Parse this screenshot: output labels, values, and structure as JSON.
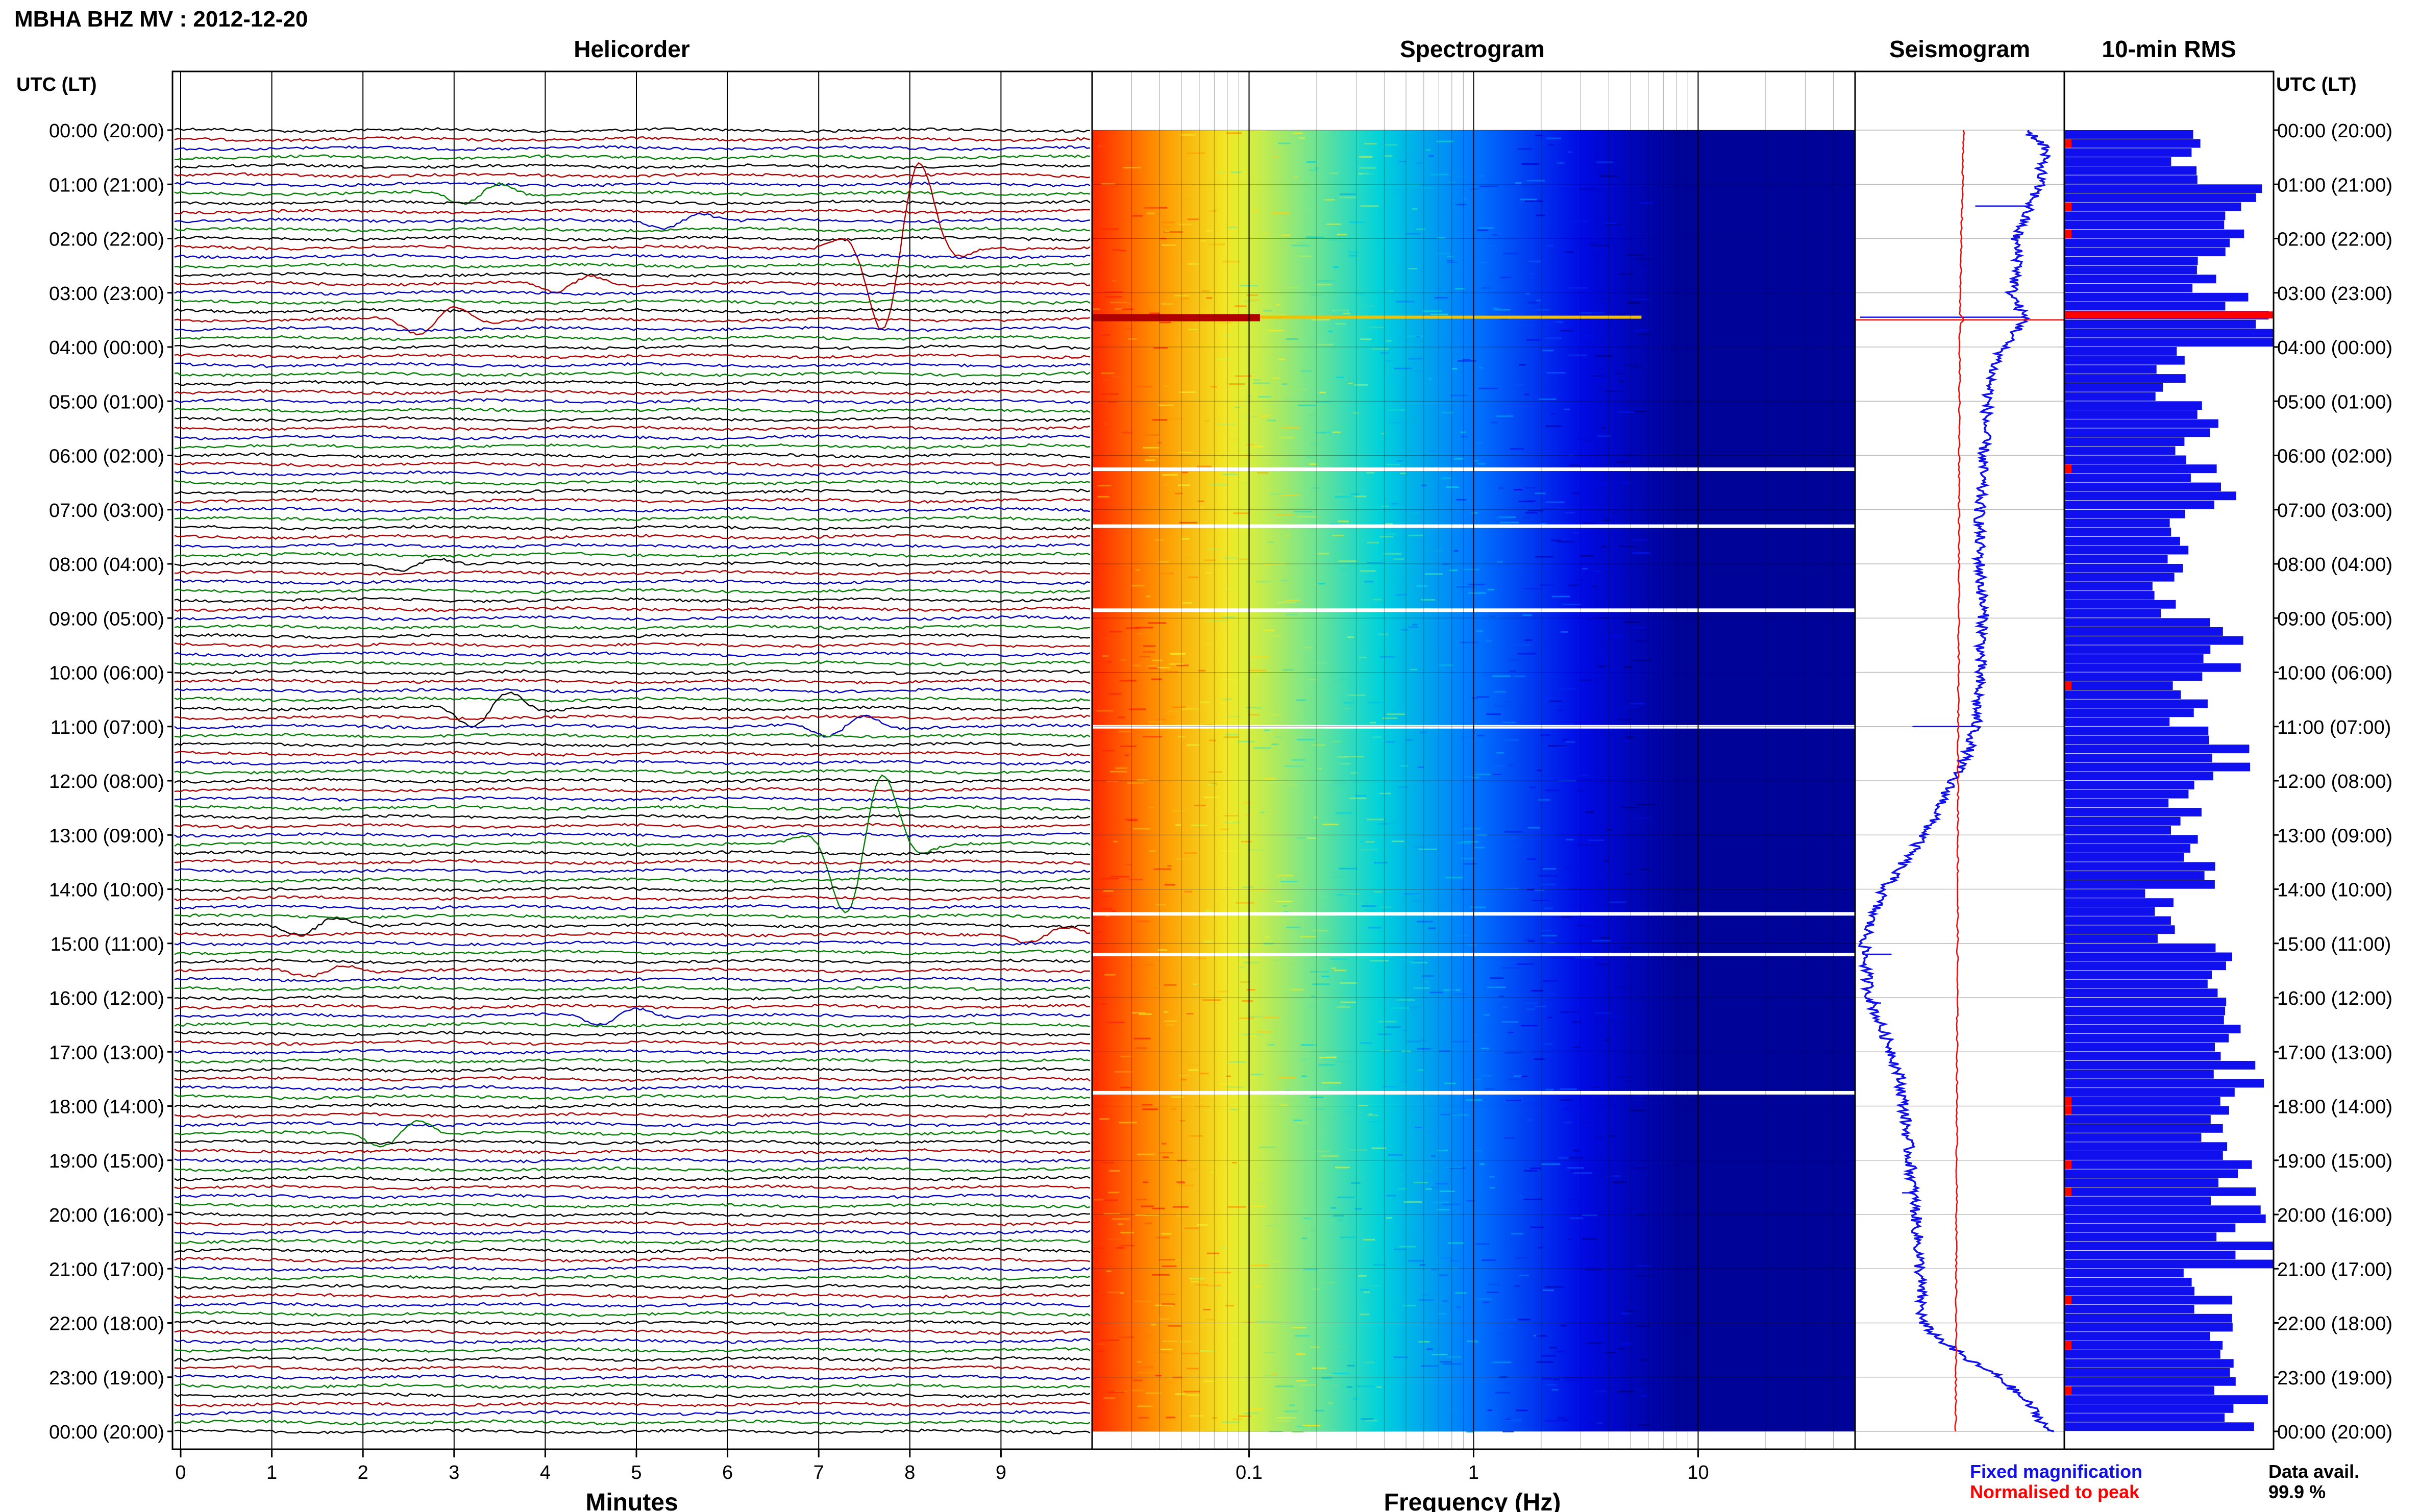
{
  "title": "MBHA BHZ MV : 2012-12-20",
  "panels": {
    "helicorder": {
      "title": "Helicorder",
      "xlabel": "Minutes"
    },
    "spectrogram": {
      "title": "Spectrogram",
      "xlabel": "Frequency (Hz)"
    },
    "seismogram": {
      "title": "Seismogram"
    },
    "rms": {
      "title": "10-min RMS"
    }
  },
  "axis_header_left": "UTC (LT)",
  "axis_header_right": "UTC (LT)",
  "time_labels": [
    "00:00 (20:00)",
    "01:00 (21:00)",
    "02:00 (22:00)",
    "03:00 (23:00)",
    "04:00 (00:00)",
    "05:00 (01:00)",
    "06:00 (02:00)",
    "07:00 (03:00)",
    "08:00 (04:00)",
    "09:00 (05:00)",
    "10:00 (06:00)",
    "11:00 (07:00)",
    "12:00 (08:00)",
    "13:00 (09:00)",
    "14:00 (10:00)",
    "15:00 (11:00)",
    "16:00 (12:00)",
    "17:00 (13:00)",
    "18:00 (14:00)",
    "19:00 (15:00)",
    "20:00 (16:00)",
    "21:00 (17:00)",
    "22:00 (18:00)",
    "23:00 (19:00)",
    "00:00 (20:00)"
  ],
  "legend": {
    "fixed": "Fixed magnification",
    "normalised": "Normalised to peak",
    "data_avail_label": "Data avail.",
    "data_avail_value": "99.9 %"
  },
  "colors": {
    "fixed": "#1010ee",
    "normalised": "#ff0000",
    "trace_cycle": [
      "#000000",
      "#b00000",
      "#0000c0",
      "#008000"
    ],
    "spectrogram_low": "#00007a",
    "spectrogram_high": "#ff3000"
  },
  "chart_data": [
    {
      "type": "line",
      "panel": "helicorder",
      "x_ticks": [
        "0",
        "1",
        "2",
        "3",
        "4",
        "5",
        "6",
        "7",
        "8",
        "9"
      ],
      "xlim": [
        0,
        10
      ],
      "rows": 144,
      "row_minutes": 10,
      "events": [
        {
          "row": 7,
          "minute": 3.3,
          "amp": 1.5
        },
        {
          "row": 10,
          "minute": 5.5,
          "amp": 1.0
        },
        {
          "row": 13,
          "minute": 7.9,
          "amp": 12.0
        },
        {
          "row": 17,
          "minute": 4.3,
          "amp": 1.2
        },
        {
          "row": 21,
          "minute": 2.8,
          "amp": 2.0
        },
        {
          "row": 48,
          "minute": 2.6,
          "amp": 0.8
        },
        {
          "row": 64,
          "minute": 3.4,
          "amp": 2.5
        },
        {
          "row": 66,
          "minute": 7.3,
          "amp": 1.5
        },
        {
          "row": 79,
          "minute": 7.5,
          "amp": 10.0
        },
        {
          "row": 88,
          "minute": 1.5,
          "amp": 1.2
        },
        {
          "row": 89,
          "minute": 9.5,
          "amp": 1.0
        },
        {
          "row": 93,
          "minute": 1.6,
          "amp": 0.8
        },
        {
          "row": 98,
          "minute": 4.8,
          "amp": 1.2
        },
        {
          "row": 111,
          "minute": 2.4,
          "amp": 1.8
        }
      ]
    },
    {
      "type": "heatmap",
      "panel": "spectrogram",
      "x_scale": "log",
      "xlim": [
        0.02,
        50
      ],
      "x_ticks": [
        "0.1",
        "1",
        "10"
      ],
      "gaps_hour": [
        6.25,
        7.3,
        8.85,
        11.0,
        14.45,
        15.2,
        17.75
      ]
    },
    {
      "type": "line",
      "panel": "seismogram",
      "series": [
        {
          "name": "Fixed magnification",
          "hours": [
            0,
            0.3,
            1,
            1.5,
            2,
            2.5,
            3,
            3.5,
            4,
            4.5,
            5,
            6,
            7,
            8,
            9,
            10,
            11,
            11.5,
            12,
            12.5,
            13,
            13.5,
            14,
            14.5,
            15,
            15.5,
            16,
            16.5,
            17,
            17.5,
            18,
            19,
            20,
            21,
            22,
            22.3,
            22.7,
            23,
            23.5,
            24
          ],
          "level": [
            0.84,
            0.93,
            0.9,
            0.84,
            0.78,
            0.8,
            0.76,
            0.83,
            0.72,
            0.66,
            0.64,
            0.62,
            0.6,
            0.6,
            0.62,
            0.6,
            0.58,
            0.54,
            0.46,
            0.4,
            0.32,
            0.22,
            0.12,
            0.06,
            0.02,
            0.03,
            0.05,
            0.1,
            0.16,
            0.2,
            0.22,
            0.25,
            0.28,
            0.3,
            0.31,
            0.4,
            0.55,
            0.7,
            0.85,
            0.95
          ]
        },
        {
          "name": "Normalised to peak",
          "hours": [
            0,
            3.4,
            3.5,
            3.6,
            24
          ],
          "level": [
            0.52,
            0.5,
            0.52,
            0.5,
            0.48
          ]
        }
      ]
    },
    {
      "type": "bar",
      "panel": "rms",
      "orientation": "horizontal",
      "hours": [
        0,
        1,
        2,
        3,
        4,
        5,
        6,
        7,
        8,
        9,
        10,
        11,
        12,
        13,
        14,
        15,
        16,
        17,
        18,
        19,
        20,
        21,
        22,
        23
      ],
      "value": [
        0.6,
        0.85,
        0.75,
        0.95,
        0.52,
        0.65,
        0.72,
        0.55,
        0.5,
        0.8,
        0.6,
        0.8,
        0.58,
        0.65,
        0.48,
        0.85,
        0.8,
        0.85,
        0.7,
        0.85,
        0.9,
        0.7,
        0.72,
        0.85
      ],
      "peak_hour": 3.4
    }
  ]
}
